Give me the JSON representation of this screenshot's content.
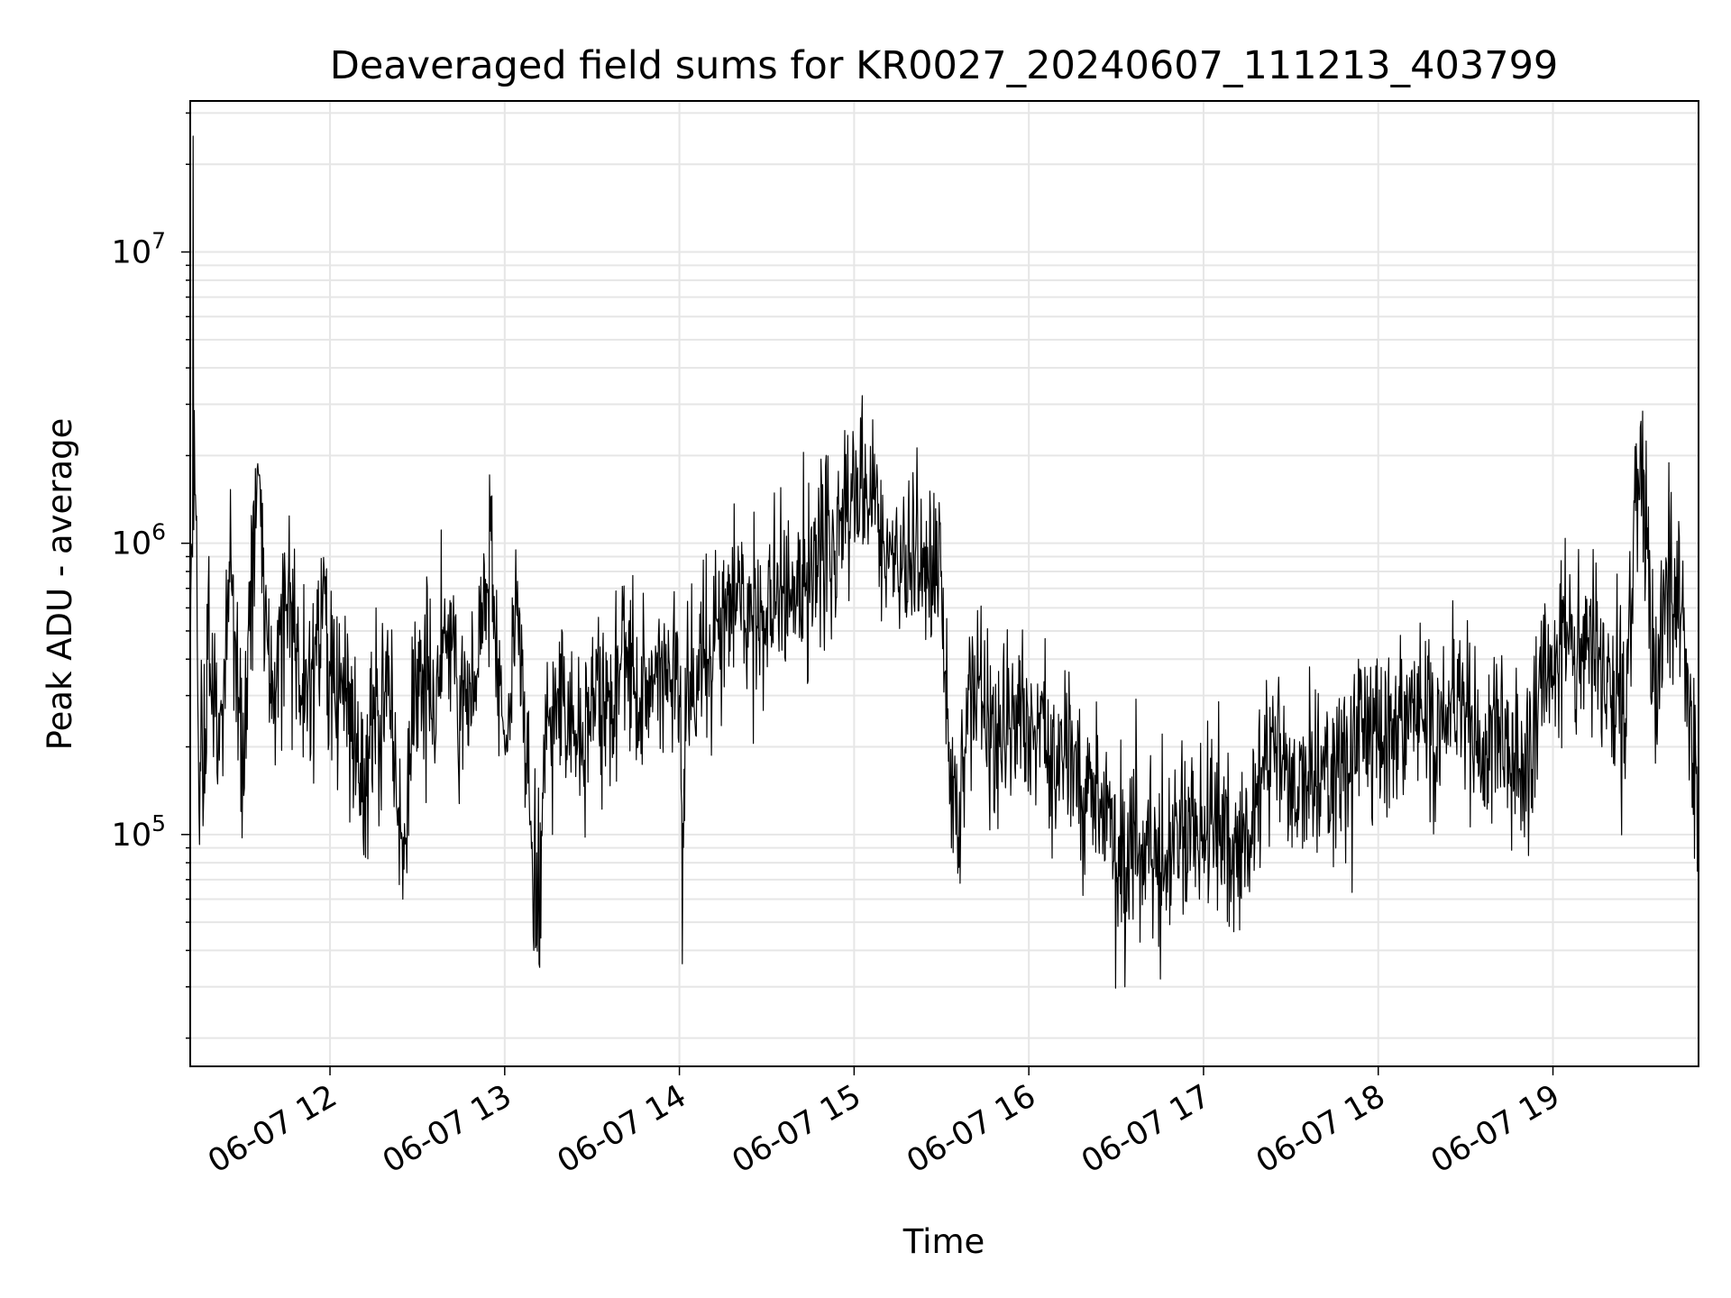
{
  "chart_data": {
    "type": "line",
    "title": "Deaveraged field sums for KR0027_20240607_111213_403799",
    "xlabel": "Time",
    "ylabel": "Peak ADU - average",
    "yscale": "log",
    "grid": true,
    "line_color": "#000000",
    "grid_color": "#e6e6e6",
    "xlim": [
      "2024-06-07 11:12",
      "2024-06-07 19:50"
    ],
    "ylim": [
      16000,
      33000000
    ],
    "x_ticks": [
      {
        "label": "06-07 12",
        "value": "2024-06-07 12:00"
      },
      {
        "label": "06-07 13",
        "value": "2024-06-07 13:00"
      },
      {
        "label": "06-07 14",
        "value": "2024-06-07 14:00"
      },
      {
        "label": "06-07 15",
        "value": "2024-06-07 15:00"
      },
      {
        "label": "06-07 16",
        "value": "2024-06-07 16:00"
      },
      {
        "label": "06-07 17",
        "value": "2024-06-07 17:00"
      },
      {
        "label": "06-07 18",
        "value": "2024-06-07 18:00"
      },
      {
        "label": "06-07 19",
        "value": "2024-06-07 19:00"
      }
    ],
    "y_ticks": [
      {
        "base": "10",
        "exp": "5",
        "value": 100000
      },
      {
        "base": "10",
        "exp": "6",
        "value": 1000000
      },
      {
        "base": "10",
        "exp": "7",
        "value": 10000000
      }
    ],
    "series": [
      {
        "points": [
          [
            "2024-06-07 11:12",
            300000
          ],
          [
            "2024-06-07 11:13",
            25000000
          ],
          [
            "2024-06-07 11:14",
            1200000
          ],
          [
            "2024-06-07 11:15",
            120000
          ],
          [
            "2024-06-07 11:18",
            400000
          ],
          [
            "2024-06-07 11:22",
            180000
          ],
          [
            "2024-06-07 11:26",
            900000
          ],
          [
            "2024-06-07 11:30",
            150000
          ],
          [
            "2024-06-07 11:35",
            1800000
          ],
          [
            "2024-06-07 11:40",
            250000
          ],
          [
            "2024-06-07 11:45",
            600000
          ],
          [
            "2024-06-07 11:50",
            300000
          ],
          [
            "2024-06-07 11:55",
            450000
          ],
          [
            "2024-06-07 11:58",
            800000
          ],
          [
            "2024-06-07 12:00",
            350000
          ],
          [
            "2024-06-07 12:05",
            300000
          ],
          [
            "2024-06-07 12:10",
            150000
          ],
          [
            "2024-06-07 12:15",
            250000
          ],
          [
            "2024-06-07 12:20",
            300000
          ],
          [
            "2024-06-07 12:25",
            60000
          ],
          [
            "2024-06-07 12:30",
            400000
          ],
          [
            "2024-06-07 12:35",
            250000
          ],
          [
            "2024-06-07 12:40",
            500000
          ],
          [
            "2024-06-07 12:45",
            300000
          ],
          [
            "2024-06-07 12:50",
            350000
          ],
          [
            "2024-06-07 12:55",
            1100000
          ],
          [
            "2024-06-07 13:00",
            200000
          ],
          [
            "2024-06-07 13:05",
            600000
          ],
          [
            "2024-06-07 13:10",
            40000
          ],
          [
            "2024-06-07 13:12",
            35000
          ],
          [
            "2024-06-07 13:15",
            250000
          ],
          [
            "2024-06-07 13:20",
            300000
          ],
          [
            "2024-06-07 13:25",
            200000
          ],
          [
            "2024-06-07 13:30",
            300000
          ],
          [
            "2024-06-07 13:35",
            250000
          ],
          [
            "2024-06-07 13:40",
            400000
          ],
          [
            "2024-06-07 13:45",
            300000
          ],
          [
            "2024-06-07 13:50",
            350000
          ],
          [
            "2024-06-07 13:55",
            400000
          ],
          [
            "2024-06-07 14:00",
            300000
          ],
          [
            "2024-06-07 14:01",
            36000
          ],
          [
            "2024-06-07 14:03",
            350000
          ],
          [
            "2024-06-07 14:10",
            400000
          ],
          [
            "2024-06-07 14:15",
            600000
          ],
          [
            "2024-06-07 14:20",
            700000
          ],
          [
            "2024-06-07 14:25",
            500000
          ],
          [
            "2024-06-07 14:30",
            600000
          ],
          [
            "2024-06-07 14:35",
            700000
          ],
          [
            "2024-06-07 14:40",
            600000
          ],
          [
            "2024-06-07 14:45",
            800000
          ],
          [
            "2024-06-07 14:50",
            900000
          ],
          [
            "2024-06-07 14:55",
            1300000
          ],
          [
            "2024-06-07 15:00",
            1400000
          ],
          [
            "2024-06-07 15:05",
            1300000
          ],
          [
            "2024-06-07 15:10",
            1000000
          ],
          [
            "2024-06-07 15:15",
            800000
          ],
          [
            "2024-06-07 15:20",
            900000
          ],
          [
            "2024-06-07 15:25",
            700000
          ],
          [
            "2024-06-07 15:30",
            800000
          ],
          [
            "2024-06-07 15:32",
            250000
          ],
          [
            "2024-06-07 15:35",
            100000
          ],
          [
            "2024-06-07 15:40",
            300000
          ],
          [
            "2024-06-07 15:45",
            250000
          ],
          [
            "2024-06-07 15:50",
            200000
          ],
          [
            "2024-06-07 15:55",
            300000
          ],
          [
            "2024-06-07 16:00",
            200000
          ],
          [
            "2024-06-07 16:05",
            250000
          ],
          [
            "2024-06-07 16:10",
            150000
          ],
          [
            "2024-06-07 16:15",
            200000
          ],
          [
            "2024-06-07 16:20",
            120000
          ],
          [
            "2024-06-07 16:25",
            150000
          ],
          [
            "2024-06-07 16:30",
            80000
          ],
          [
            "2024-06-07 16:33",
            30000
          ],
          [
            "2024-06-07 16:35",
            100000
          ],
          [
            "2024-06-07 16:40",
            60000
          ],
          [
            "2024-06-07 16:45",
            80000
          ],
          [
            "2024-06-07 16:50",
            100000
          ],
          [
            "2024-06-07 16:55",
            120000
          ],
          [
            "2024-06-07 17:00",
            100000
          ],
          [
            "2024-06-07 17:05",
            120000
          ],
          [
            "2024-06-07 17:10",
            100000
          ],
          [
            "2024-06-07 17:15",
            90000
          ],
          [
            "2024-06-07 17:20",
            150000
          ],
          [
            "2024-06-07 17:25",
            200000
          ],
          [
            "2024-06-07 17:30",
            130000
          ],
          [
            "2024-06-07 17:35",
            200000
          ],
          [
            "2024-06-07 17:40",
            150000
          ],
          [
            "2024-06-07 17:45",
            200000
          ],
          [
            "2024-06-07 17:50",
            150000
          ],
          [
            "2024-06-07 17:55",
            250000
          ],
          [
            "2024-06-07 18:00",
            200000
          ],
          [
            "2024-06-07 18:05",
            250000
          ],
          [
            "2024-06-07 18:10",
            300000
          ],
          [
            "2024-06-07 18:15",
            250000
          ],
          [
            "2024-06-07 18:20",
            200000
          ],
          [
            "2024-06-07 18:25",
            300000
          ],
          [
            "2024-06-07 18:30",
            250000
          ],
          [
            "2024-06-07 18:35",
            200000
          ],
          [
            "2024-06-07 18:40",
            250000
          ],
          [
            "2024-06-07 18:45",
            200000
          ],
          [
            "2024-06-07 18:50",
            150000
          ],
          [
            "2024-06-07 18:55",
            300000
          ],
          [
            "2024-06-07 19:00",
            350000
          ],
          [
            "2024-06-07 19:05",
            500000
          ],
          [
            "2024-06-07 19:10",
            400000
          ],
          [
            "2024-06-07 19:15",
            500000
          ],
          [
            "2024-06-07 19:20",
            300000
          ],
          [
            "2024-06-07 19:25",
            250000
          ],
          [
            "2024-06-07 19:30",
            2500000
          ],
          [
            "2024-06-07 19:35",
            300000
          ],
          [
            "2024-06-07 19:40",
            800000
          ],
          [
            "2024-06-07 19:45",
            600000
          ],
          [
            "2024-06-07 19:50",
            90000
          ]
        ]
      }
    ]
  }
}
